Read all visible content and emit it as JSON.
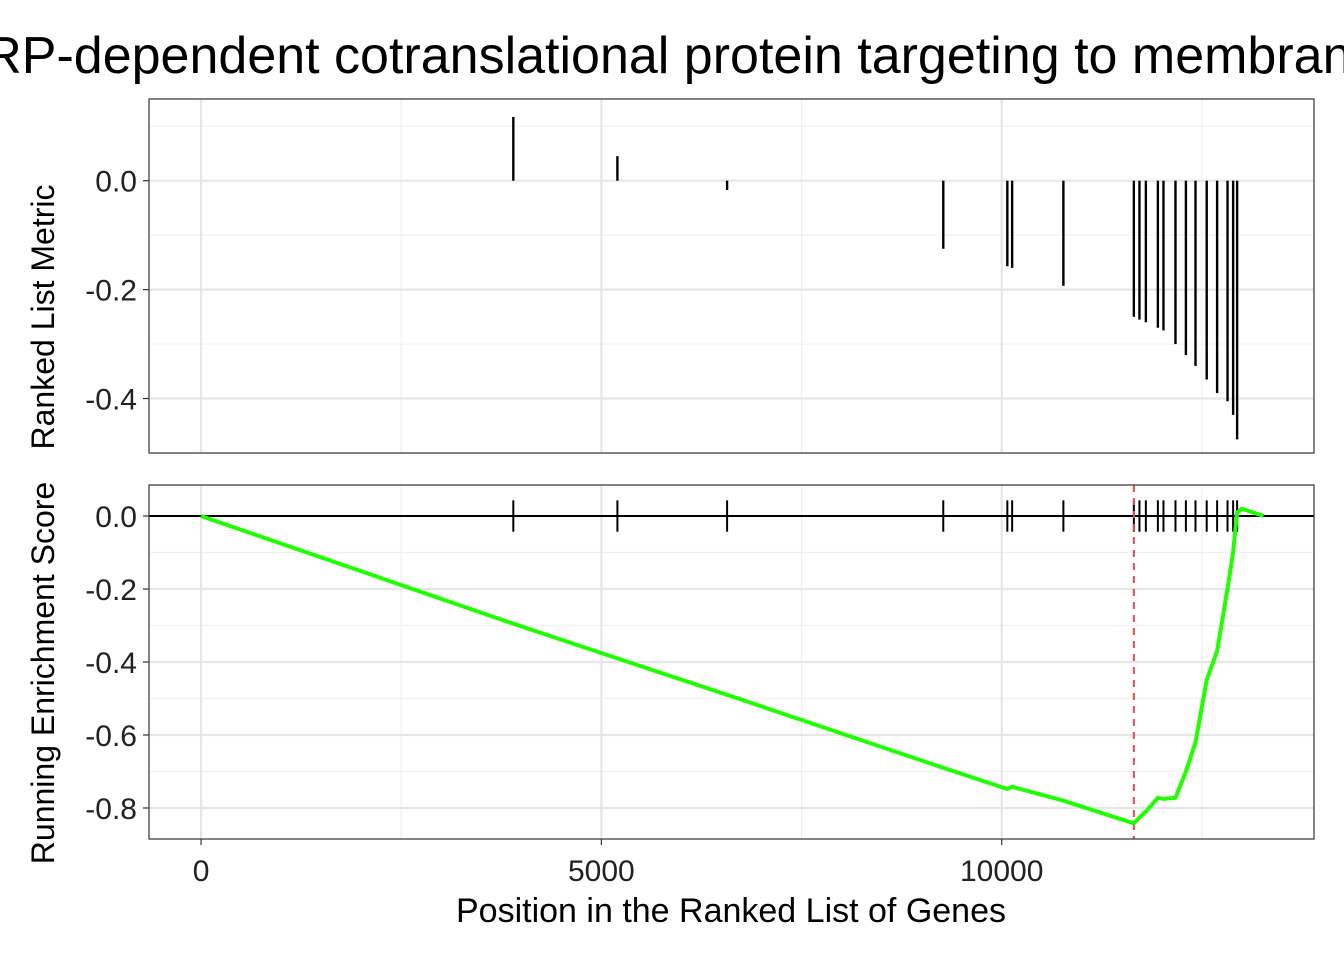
{
  "chart_data": {
    "type": "line",
    "title": "SRP-dependent cotranslational protein targeting to membrane",
    "xlabel": "Position in the Ranked List of Genes",
    "ylabel_top": "Ranked List Metric",
    "ylabel_bottom": "Running Enrichment Score",
    "xlim": [
      -650,
      13900
    ],
    "x_ticks": [
      0,
      5000,
      10000
    ],
    "x_tick_labels": [
      "0",
      "5000",
      "10000"
    ],
    "grid": true,
    "panels": [
      {
        "name": "ranked-list-metric",
        "type": "bar",
        "ylim": [
          -0.5,
          0.15
        ],
        "y_ticks": [
          0.0,
          -0.2,
          -0.4
        ],
        "y_tick_labels": [
          "0.0",
          "-0.2",
          "-0.4"
        ],
        "series": [
          {
            "x": [
              3900,
              5200,
              6570,
              9270,
              10070,
              10130,
              10770,
              11650,
              11720,
              11800,
              11950,
              12020,
              12170,
              12300,
              12420,
              12560,
              12690,
              12820,
              12890,
              12940
            ],
            "values": [
              0.117,
              0.045,
              -0.017,
              -0.125,
              -0.157,
              -0.16,
              -0.193,
              -0.25,
              -0.255,
              -0.26,
              -0.27,
              -0.275,
              -0.3,
              -0.32,
              -0.34,
              -0.365,
              -0.39,
              -0.405,
              -0.43,
              -0.475
            ]
          }
        ]
      },
      {
        "name": "running-enrichment-score",
        "type": "line",
        "ylim": [
          -0.885,
          0.085
        ],
        "y_ticks": [
          0.0,
          -0.2,
          -0.4,
          -0.6,
          -0.8
        ],
        "y_tick_labels": [
          "0.0",
          "-0.2",
          "-0.4",
          "-0.6",
          "-0.8"
        ],
        "hline": 0,
        "vline": 11650,
        "vline_color": "#e34a5a",
        "line_color": "#22ff00",
        "series": [
          {
            "x": [
              0,
              3900,
              5200,
              6570,
              9270,
              10070,
              10130,
              10770,
              11650,
              11720,
              11800,
              11950,
              12020,
              12170,
              12300,
              12420,
              12560,
              12690,
              12820,
              12890,
              12940,
              13000,
              13270
            ],
            "values": [
              0.0,
              -0.295,
              -0.39,
              -0.49,
              -0.69,
              -0.748,
              -0.742,
              -0.78,
              -0.842,
              -0.826,
              -0.81,
              -0.772,
              -0.775,
              -0.772,
              -0.7,
              -0.62,
              -0.45,
              -0.37,
              -0.2,
              -0.1,
              0.01,
              0.02,
              0.0
            ]
          }
        ],
        "gene_hits_x": [
          3900,
          5200,
          6570,
          9270,
          10070,
          10130,
          10770,
          11650,
          11720,
          11800,
          11950,
          12020,
          12170,
          12300,
          12420,
          12560,
          12690,
          12820,
          12890,
          12940
        ]
      }
    ],
    "line_color": "#22ff00"
  }
}
